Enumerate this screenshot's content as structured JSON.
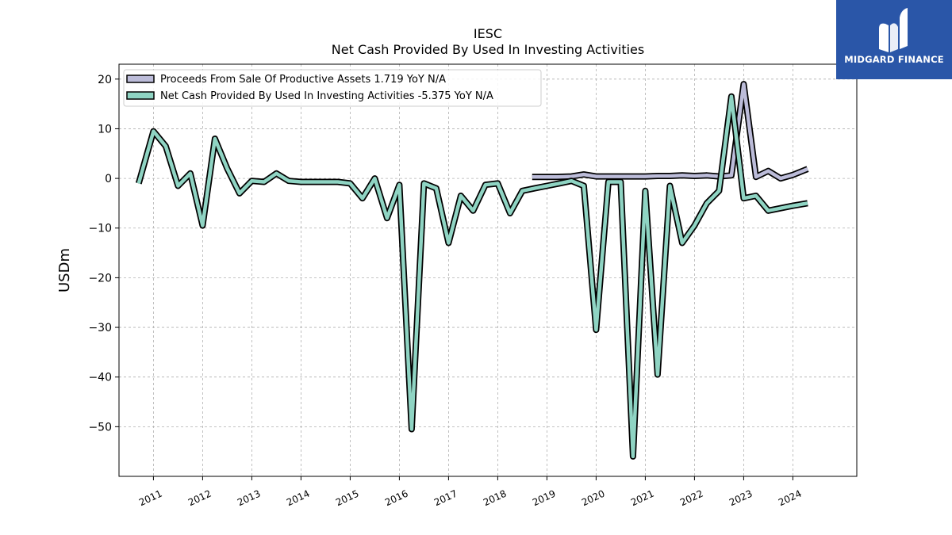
{
  "logo": {
    "text": "MIDGARD FINANCE",
    "bg_color": "#2a56a8"
  },
  "chart_data": {
    "type": "line",
    "title": "IESC",
    "subtitle": "Net Cash Provided By Used In Investing Activities",
    "ylabel": "USDm",
    "xlabel": "",
    "ylim": [
      -60,
      23
    ],
    "xlim": [
      2010.3,
      2025.3
    ],
    "yticks": [
      20,
      10,
      0,
      -10,
      -20,
      -30,
      -40,
      -50
    ],
    "ytick_labels": [
      "20",
      "10",
      "0",
      "−10",
      "−20",
      "−30",
      "−40",
      "−50"
    ],
    "xticks": [
      2011,
      2012,
      2013,
      2014,
      2015,
      2016,
      2017,
      2018,
      2019,
      2020,
      2021,
      2022,
      2023,
      2024
    ],
    "xtick_labels": [
      "2011",
      "2012",
      "2013",
      "2014",
      "2015",
      "2016",
      "2017",
      "2018",
      "2019",
      "2020",
      "2021",
      "2022",
      "2023",
      "2024"
    ],
    "grid": true,
    "legend_position": "top-left",
    "series": [
      {
        "name": "Proceeds From Sale Of Productive Assets",
        "legend_label": "Proceeds From Sale Of Productive Assets  1.719 YoY N/A",
        "color": "#bcbcd9",
        "x": [
          2018.7,
          2018.95,
          2019.2,
          2019.5,
          2019.75,
          2020.0,
          2020.25,
          2020.5,
          2020.75,
          2021.0,
          2021.25,
          2021.5,
          2021.75,
          2022.0,
          2022.25,
          2022.5,
          2022.75,
          2023.0,
          2023.25,
          2023.5,
          2023.75,
          2024.0,
          2024.3
        ],
        "y": [
          0.3,
          0.3,
          0.3,
          0.4,
          0.8,
          0.4,
          0.4,
          0.4,
          0.4,
          0.4,
          0.5,
          0.5,
          0.6,
          0.5,
          0.6,
          0.4,
          0.6,
          19.0,
          0.3,
          1.5,
          0.0,
          0.7,
          1.9
        ]
      },
      {
        "name": "Net Cash Provided By Used In Investing Activities",
        "legend_label": "Net Cash Provided By Used In Investing Activities  -5.375 YoY N/A",
        "color": "#8fd4c3",
        "x": [
          2010.7,
          2011.0,
          2011.25,
          2011.5,
          2011.75,
          2012.0,
          2012.25,
          2012.5,
          2012.75,
          2013.0,
          2013.25,
          2013.5,
          2013.75,
          2014.0,
          2014.25,
          2014.5,
          2014.75,
          2015.0,
          2015.25,
          2015.5,
          2015.75,
          2016.0,
          2016.25,
          2016.5,
          2016.75,
          2017.0,
          2017.25,
          2017.5,
          2017.75,
          2018.0,
          2018.25,
          2018.5,
          2018.75,
          2019.0,
          2019.25,
          2019.5,
          2019.75,
          2020.0,
          2020.25,
          2020.5,
          2020.75,
          2021.0,
          2021.25,
          2021.5,
          2021.75,
          2022.0,
          2022.25,
          2022.5,
          2022.75,
          2023.0,
          2023.25,
          2023.5,
          2023.75,
          2024.0,
          2024.3
        ],
        "y": [
          -1.0,
          9.5,
          6.5,
          -1.5,
          1.0,
          -9.5,
          8.0,
          2.0,
          -3.0,
          -0.5,
          -0.7,
          1.0,
          -0.5,
          -0.7,
          -0.7,
          -0.7,
          -0.7,
          -1.0,
          -4.0,
          0.0,
          -8.0,
          -1.3,
          -50.5,
          -1.0,
          -2.0,
          -13.0,
          -3.5,
          -6.5,
          -1.3,
          -1.0,
          -7.0,
          -2.5,
          -2.0,
          -1.5,
          -1.0,
          -0.5,
          -1.5,
          -30.5,
          -0.7,
          -0.7,
          -56.0,
          -2.5,
          -39.5,
          -1.5,
          -13.0,
          -9.5,
          -5.0,
          -2.5,
          16.5,
          -4.0,
          -3.5,
          -6.5,
          -6.0,
          -5.5,
          -5.0
        ]
      }
    ]
  }
}
